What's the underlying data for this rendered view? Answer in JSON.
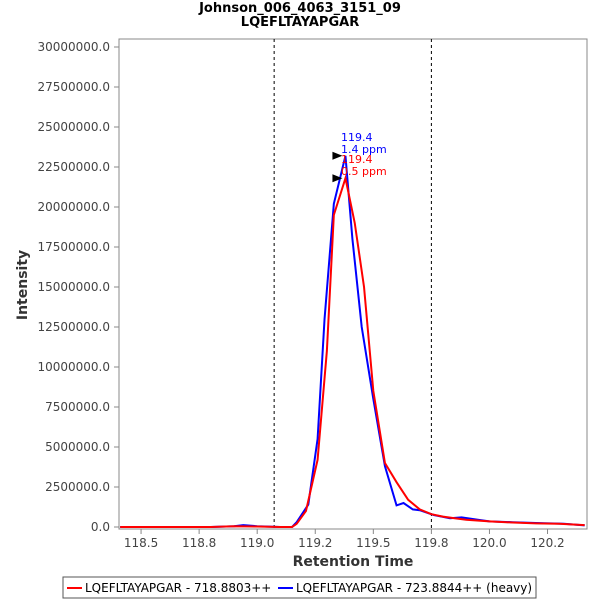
{
  "chart_data": {
    "type": "line",
    "title": "Johnson_006_4063_3151_09",
    "subtitle": "LQEFLTAYAPGAR",
    "xlabel": "Retention Time",
    "ylabel": "Intensity",
    "xlim": [
      118.405,
      120.42
    ],
    "ylim": [
      0,
      30500000
    ],
    "xticks": [
      118.5,
      118.75,
      119.0,
      119.25,
      119.5,
      119.75,
      120.0,
      120.25
    ],
    "xtick_labels": [
      "118.5",
      "118.8",
      "119.0",
      "119.2",
      "119.5",
      "119.8",
      "120.0",
      "120.2"
    ],
    "yticks": [
      0,
      2500000,
      5000000,
      7500000,
      10000000,
      12500000,
      15000000,
      17500000,
      20000000,
      22500000,
      25000000,
      27500000,
      30000000
    ],
    "ytick_labels": [
      "0.0",
      "2500000.0",
      "5000000.0",
      "7500000.0",
      "10000000.0",
      "12500000.0",
      "15000000.0",
      "17500000.0",
      "20000000.0",
      "22500000.0",
      "25000000.0",
      "27500000.0",
      "30000000.0"
    ],
    "vlines": [
      119.073,
      119.75
    ],
    "series": [
      {
        "name": "LQEFLTAYAPGAR - 718.8803++",
        "color": "#ff0000",
        "x": [
          118.41,
          118.6,
          118.8,
          118.9,
          119.0,
          119.1,
          119.15,
          119.17,
          119.21,
          119.26,
          119.3,
          119.33,
          119.38,
          119.42,
          119.46,
          119.5,
          119.55,
          119.6,
          119.65,
          119.7,
          119.75,
          119.8,
          119.85,
          119.9,
          120.0,
          120.1,
          120.2,
          120.3,
          120.41
        ],
        "y": [
          0,
          0,
          0,
          50000,
          30000,
          0,
          0,
          200000,
          1000000,
          4200000,
          11000000,
          19500000,
          21800000,
          19000000,
          15000000,
          8500000,
          4000000,
          2800000,
          1700000,
          1100000,
          800000,
          650000,
          550000,
          450000,
          350000,
          280000,
          230000,
          200000,
          120000
        ],
        "annotation": [
          "119.4",
          "0.5 ppm"
        ]
      },
      {
        "name": "LQEFLTAYAPGAR - 723.8844++ (heavy)",
        "color": "#0000ff",
        "x": [
          118.41,
          118.6,
          118.8,
          118.9,
          118.94,
          119.0,
          119.1,
          119.15,
          119.17,
          119.22,
          119.26,
          119.29,
          119.33,
          119.38,
          119.41,
          119.45,
          119.5,
          119.55,
          119.6,
          119.63,
          119.67,
          119.7,
          119.76,
          119.83,
          119.88,
          119.95,
          120.0,
          120.1,
          120.2,
          120.32,
          120.41
        ],
        "y": [
          0,
          0,
          0,
          50000,
          120000,
          50000,
          0,
          0,
          300000,
          1400000,
          5500000,
          13000000,
          20200000,
          23200000,
          18000000,
          12500000,
          8000000,
          3800000,
          1350000,
          1500000,
          1100000,
          1050000,
          750000,
          550000,
          600000,
          450000,
          350000,
          300000,
          250000,
          200000,
          100000
        ],
        "annotation": [
          "119.4",
          "1.4 ppm"
        ]
      }
    ],
    "legend_position": "bottom"
  }
}
